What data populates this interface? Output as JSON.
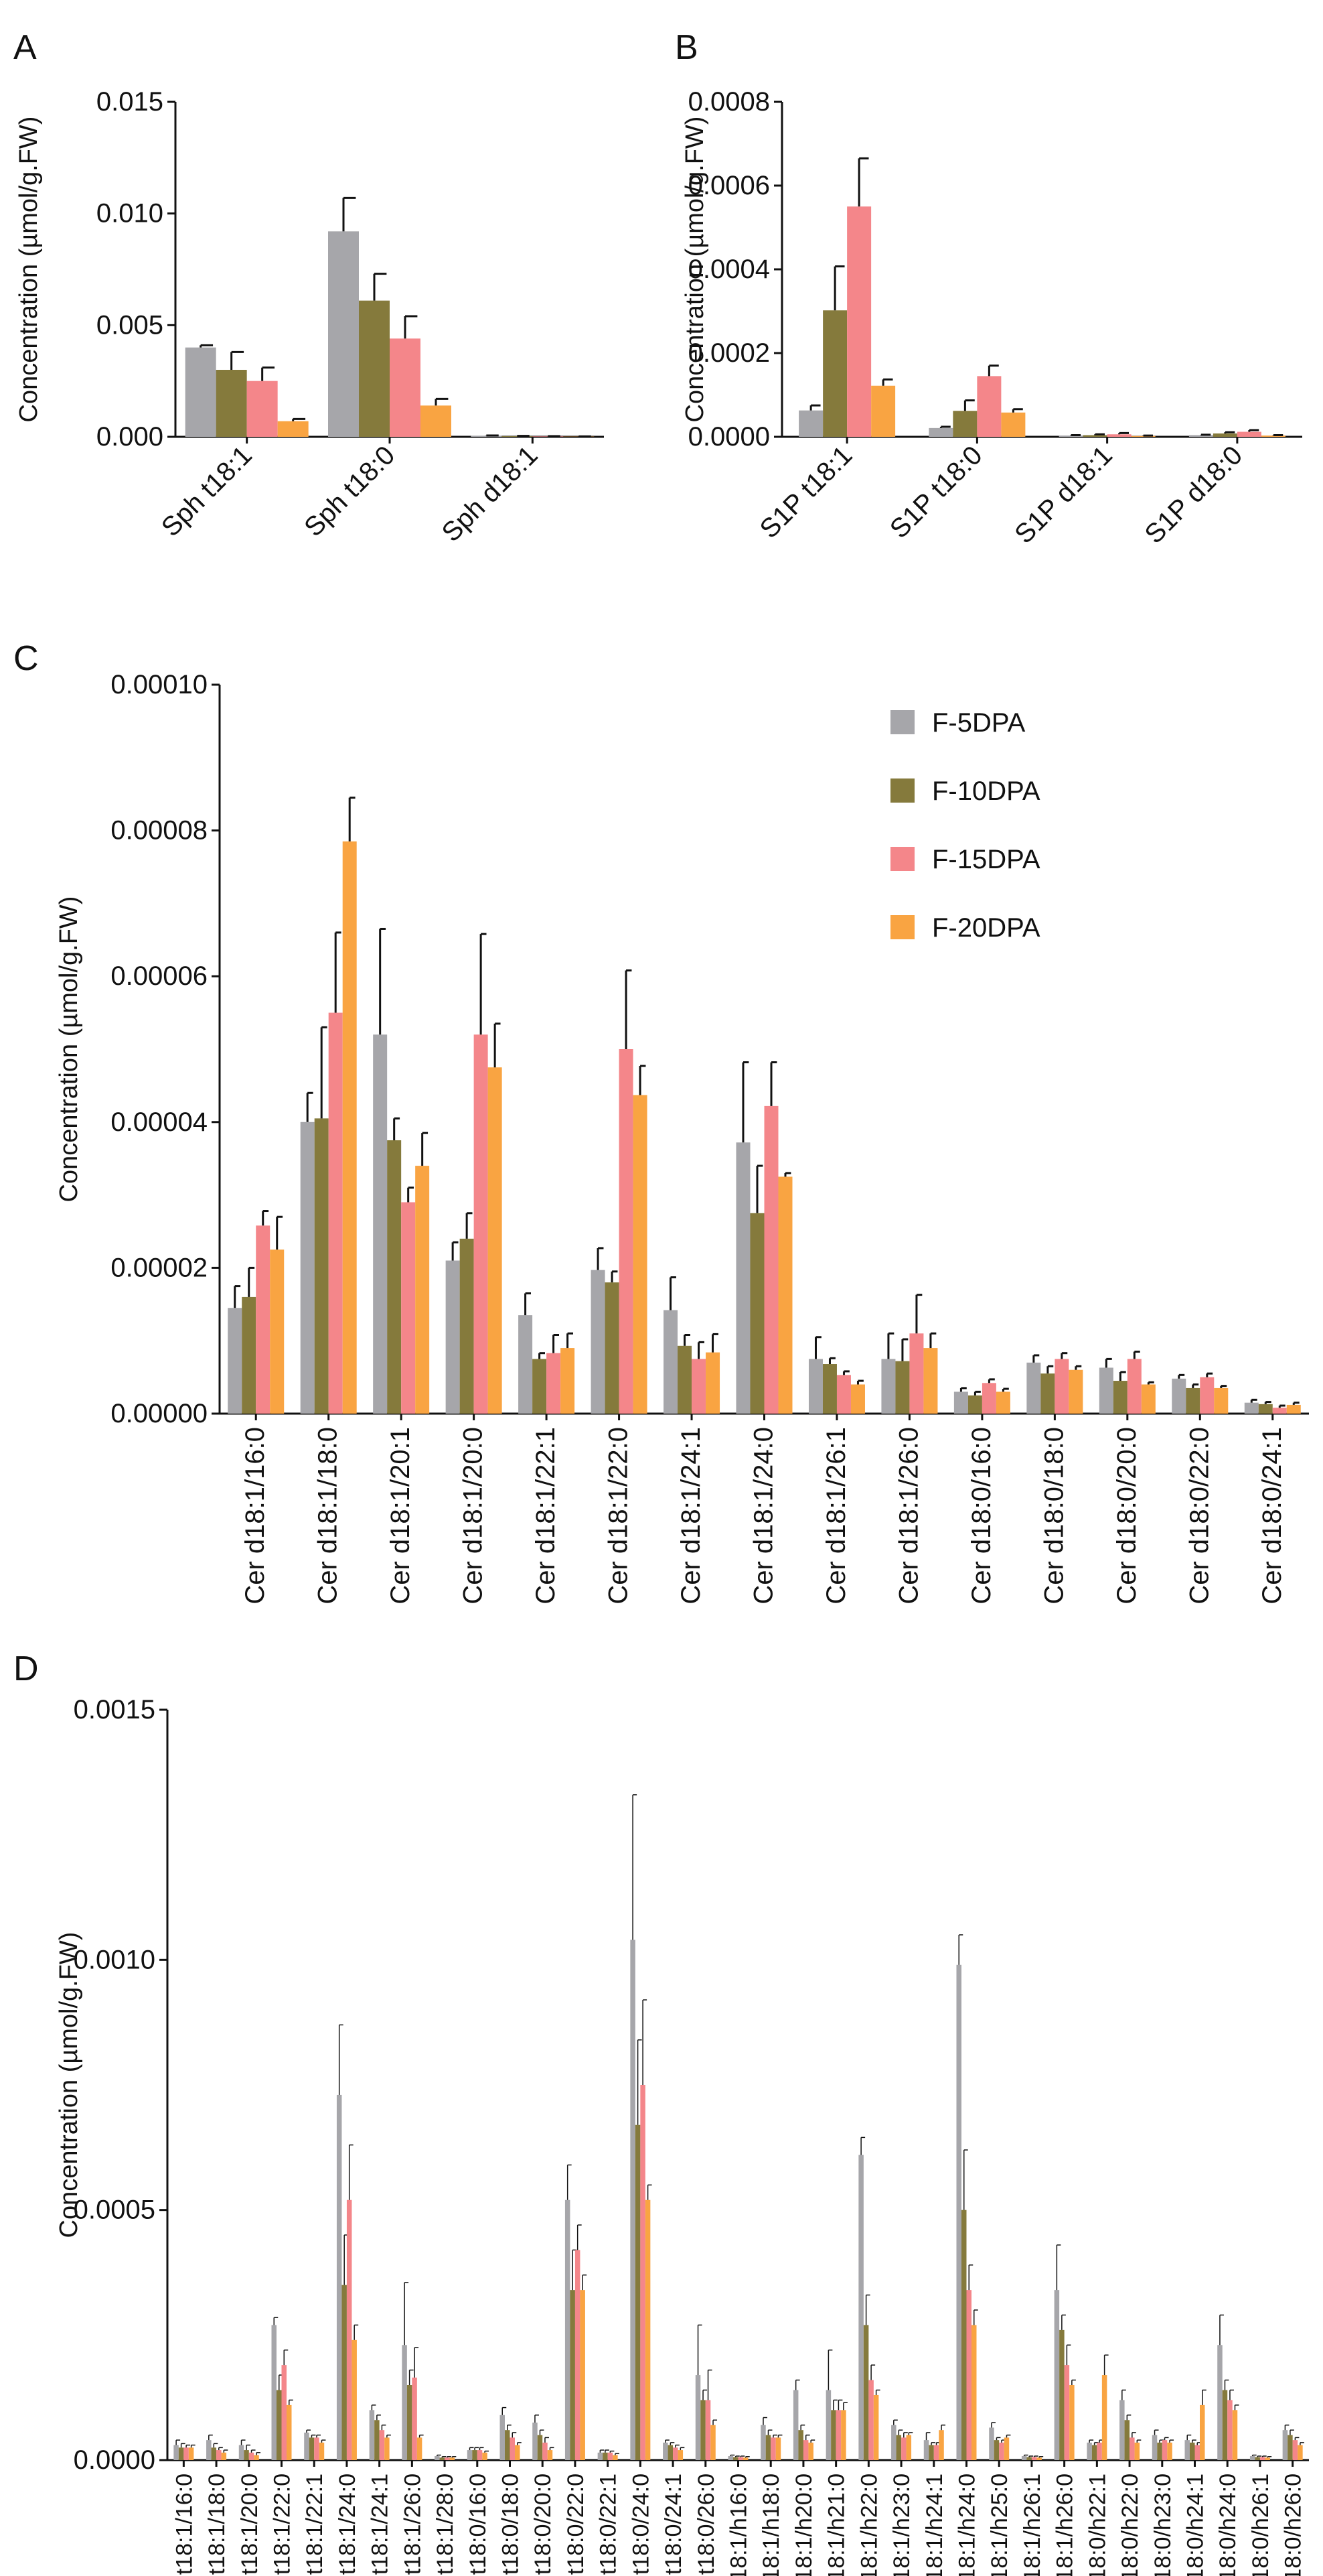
{
  "colors": {
    "F-5DPA": "#a6a6aa",
    "F-10DPA": "#857a3c",
    "F-15DPA": "#f4868a",
    "F-20DPA": "#f9a442",
    "axis": "#111111"
  },
  "chart_data": [
    {
      "panel": "A",
      "type": "bar",
      "ylabel": "Concentration (µmol/g.FW)",
      "ylim": [
        0,
        0.015
      ],
      "yticks": [
        "0.000",
        "0.005",
        "0.010",
        "0.015"
      ],
      "categories": [
        "Sph t18:1",
        "Sph t18:0",
        "Sph d18:1"
      ],
      "series": [
        {
          "values": [
            0.004,
            0.0092,
            5e-05
          ],
          "errors": [
            0.0001,
            0.0015,
            1e-05
          ]
        },
        {
          "values": [
            0.003,
            0.0061,
            3e-05
          ],
          "errors": [
            0.0008,
            0.0012,
            1e-05
          ]
        },
        {
          "values": [
            0.0025,
            0.0044,
            2e-05
          ],
          "errors": [
            0.0006,
            0.001,
            1e-05
          ]
        },
        {
          "values": [
            0.0007,
            0.0014,
            1e-05
          ],
          "errors": [
            0.0001,
            0.0003,
            1e-05
          ]
        }
      ]
    },
    {
      "panel": "B",
      "type": "bar",
      "ylabel": "Concentration (µmol/g.FW)",
      "ylim": [
        0,
        0.0008
      ],
      "yticks": [
        "0.0000",
        "0.0002",
        "0.0004",
        "0.0006",
        "0.0008"
      ],
      "categories": [
        "S1P t18:1",
        "S1P t18:0",
        "S1P d18:1",
        "S1P d18:0"
      ],
      "series": [
        {
          "values": [
            6.3e-05,
            2.1e-05,
            3e-06,
            4e-06
          ],
          "errors": [
            1.2e-05,
            3e-06,
            1e-06,
            1e-06
          ]
        },
        {
          "values": [
            0.000302,
            6.2e-05,
            4e-06,
            8e-06
          ],
          "errors": [
            0.000105,
            2.5e-05,
            2e-06,
            3e-06
          ]
        },
        {
          "values": [
            0.00055,
            0.000145,
            6e-06,
            1.2e-05
          ],
          "errors": [
            0.000115,
            2.5e-05,
            3e-06,
            4e-06
          ]
        },
        {
          "values": [
            0.000122,
            5.8e-05,
            2e-06,
            3e-06
          ],
          "errors": [
            1.5e-05,
            8e-06,
            1e-06,
            1e-06
          ]
        }
      ]
    },
    {
      "panel": "C",
      "type": "bar",
      "ylabel": "Concentration (µmol/g.FW)",
      "ylim": [
        0,
        0.0001
      ],
      "yticks": [
        "0.00000",
        "0.00002",
        "0.00004",
        "0.00006",
        "0.00008",
        "0.00010"
      ],
      "legend": [
        "F-5DPA",
        "F-10DPA",
        "F-15DPA",
        "F-20DPA"
      ],
      "categories": [
        "Cer d18:1/16:0",
        "Cer d18:1/18:0",
        "Cer d18:1/20:1",
        "Cer d18:1/20:0",
        "Cer d18:1/22:1",
        "Cer d18:1/22:0",
        "Cer d18:1/24:1",
        "Cer d18:1/24:0",
        "Cer d18:1/26:1",
        "Cer d18:1/26:0",
        "Cer d18:0/16:0",
        "Cer d18:0/18:0",
        "Cer d18:0/20:0",
        "Cer d18:0/22:0",
        "Cer d18:0/24:1"
      ],
      "series": [
        {
          "name": "F-5DPA",
          "values": [
            1.45e-05,
            4e-05,
            5.2e-05,
            2.1e-05,
            1.35e-05,
            1.97e-05,
            1.42e-05,
            3.72e-05,
            7.5e-06,
            7.5e-06,
            3e-06,
            7e-06,
            6.3e-06,
            4.8e-06,
            1.5e-06
          ],
          "errors": [
            3e-06,
            4e-06,
            1.45e-05,
            2.5e-06,
            3e-06,
            3e-06,
            4.5e-06,
            1.1e-05,
            3e-06,
            3.5e-06,
            5e-07,
            1e-06,
            1.2e-06,
            5e-07,
            4e-07
          ]
        },
        {
          "name": "F-10DPA",
          "values": [
            1.6e-05,
            4.05e-05,
            3.75e-05,
            2.4e-05,
            7.5e-06,
            1.8e-05,
            9.3e-06,
            2.75e-05,
            6.8e-06,
            7.2e-06,
            2.5e-06,
            5.5e-06,
            4.5e-06,
            3.5e-06,
            1.3e-06
          ],
          "errors": [
            4e-06,
            1.25e-05,
            3e-06,
            3.5e-06,
            8e-07,
            1.5e-06,
            1.5e-06,
            6.5e-06,
            8e-07,
            3e-06,
            5e-07,
            1e-06,
            1.2e-06,
            5e-07,
            3e-07
          ]
        },
        {
          "name": "F-15DPA",
          "values": [
            2.58e-05,
            5.5e-05,
            2.9e-05,
            5.2e-05,
            8.3e-06,
            5e-05,
            7.5e-06,
            4.22e-05,
            5.3e-06,
            1.1e-05,
            4.2e-06,
            7.5e-06,
            7.5e-06,
            5e-06,
            8e-07
          ],
          "errors": [
            2e-06,
            1.1e-05,
            2e-06,
            1.38e-05,
            2.5e-06,
            1.08e-05,
            2.3e-06,
            6e-06,
            5e-07,
            5.3e-06,
            5e-07,
            8e-07,
            1e-06,
            5e-07,
            3e-07
          ]
        },
        {
          "name": "F-20DPA",
          "values": [
            2.25e-05,
            7.85e-05,
            3.4e-05,
            4.75e-05,
            9e-06,
            4.37e-05,
            8.4e-06,
            3.25e-05,
            4e-06,
            9e-06,
            3e-06,
            6e-06,
            4e-06,
            3.5e-06,
            1.2e-06
          ],
          "errors": [
            4.5e-06,
            6e-06,
            4.5e-06,
            6e-06,
            2e-06,
            4e-06,
            2.5e-06,
            5e-07,
            5e-07,
            2e-06,
            4e-07,
            5e-07,
            3e-07,
            3e-07,
            3e-07
          ]
        }
      ]
    },
    {
      "panel": "D",
      "type": "bar",
      "ylabel": "Concentration (µmol/g.FW)",
      "ylim": [
        0,
        0.0015
      ],
      "yticks": [
        "0.0000",
        "0.0005",
        "0.0010",
        "0.0015"
      ],
      "categories": [
        "t18:1/16:0",
        "t18:1/18:0",
        "t18:1/20:0",
        "t18:1/22:0",
        "t18:1/22:1",
        "t18:1/24:0",
        "t18:1/24:1",
        "t18:1/26:0",
        "t18:1/28:0",
        "t18:0/16:0",
        "t18:0/18:0",
        "t18:0/20:0",
        "t18:0/22:0",
        "t18:0/22:1",
        "t18:0/24:0",
        "t18:0/24:1",
        "t18:0/26:0",
        "t18:1/h16:0",
        "t18:1/h18:0",
        "t18:1/h20:0",
        "t18:1/h21:0",
        "t18:1/h22:0",
        "t18:1/h23:0",
        "t18:1/h24:1",
        "t18:1/h24:0",
        "t18:1/h25:0",
        "t18:1/h26:1",
        "t18:1/h26:0",
        "t18:0/h22:1",
        "t18:0/h22:0",
        "t18:0/h23:0",
        "t18:0/h24:1",
        "t18:0/h24:0",
        "t18:0/h26:1",
        "t18:0/h26:0"
      ],
      "series": [
        {
          "values": [
            3e-05,
            4e-05,
            3e-05,
            0.00027,
            5.5e-05,
            0.00073,
            0.0001,
            0.00023,
            8e-06,
            2e-05,
            9e-05,
            7.5e-05,
            0.00052,
            1.5e-05,
            0.00104,
            3.5e-05,
            0.00017,
            8e-06,
            7e-05,
            0.00014,
            0.00014,
            0.00061,
            7e-05,
            4e-05,
            0.00099,
            6.5e-05,
            8e-06,
            0.00034,
            3.5e-05,
            0.00012,
            5e-05,
            4e-05,
            0.00023,
            8e-06,
            6e-05
          ],
          "errors": [
            1e-05,
            1e-05,
            1e-05,
            1.5e-05,
            5e-06,
            0.00014,
            1e-05,
            0.000125,
            2e-06,
            5e-06,
            1.5e-05,
            1.5e-05,
            7e-05,
            5e-06,
            0.00029,
            5e-06,
            0.0001,
            2e-06,
            1.5e-05,
            2e-05,
            8e-05,
            3.5e-05,
            1e-05,
            1.5e-05,
            6e-05,
            1e-05,
            2e-06,
            9e-05,
            5e-06,
            2e-05,
            1e-05,
            1e-05,
            6e-05,
            2e-06,
            1e-05
          ]
        },
        {
          "values": [
            2.5e-05,
            2.5e-05,
            2e-05,
            0.00014,
            4.5e-05,
            0.00035,
            8e-05,
            0.00015,
            5e-06,
            2e-05,
            6e-05,
            5e-05,
            0.00034,
            1.5e-05,
            0.00067,
            3e-05,
            0.00012,
            6e-06,
            5e-05,
            6e-05,
            0.0001,
            0.00027,
            5e-05,
            3e-05,
            0.0005,
            4e-05,
            6e-06,
            0.00026,
            3e-05,
            8e-05,
            3.5e-05,
            3.5e-05,
            0.00014,
            6e-06,
            5e-05
          ],
          "errors": [
            8e-06,
            8e-06,
            1e-05,
            3e-05,
            5e-06,
            0.0001,
            1e-05,
            3e-05,
            2e-06,
            5e-06,
            1e-05,
            1e-05,
            8e-05,
            5e-06,
            0.00017,
            5e-06,
            2e-05,
            2e-06,
            1e-05,
            1e-05,
            2e-05,
            6e-05,
            1e-05,
            5e-06,
            0.00012,
            5e-06,
            2e-06,
            3e-05,
            5e-06,
            1e-05,
            5e-06,
            5e-06,
            2e-05,
            2e-06,
            1e-05
          ]
        },
        {
          "values": [
            2.5e-05,
            2e-05,
            1.5e-05,
            0.00019,
            4.5e-05,
            0.00052,
            6e-05,
            0.000165,
            5e-06,
            2e-05,
            4.5e-05,
            3.5e-05,
            0.00042,
            1.5e-05,
            0.00075,
            2.5e-05,
            0.00012,
            6e-06,
            4.5e-05,
            4e-05,
            0.0001,
            0.00016,
            4.5e-05,
            3e-05,
            0.00034,
            3.5e-05,
            6e-06,
            0.00019,
            3.5e-05,
            4.5e-05,
            4e-05,
            3e-05,
            0.00012,
            6e-06,
            4e-05
          ],
          "errors": [
            5e-06,
            5e-06,
            5e-06,
            3e-05,
            5e-06,
            0.00011,
            1e-05,
            6e-05,
            2e-06,
            5e-06,
            1e-05,
            1e-05,
            5e-05,
            3e-06,
            0.00017,
            5e-06,
            6e-05,
            2e-06,
            5e-06,
            1e-05,
            2e-05,
            3e-05,
            1e-05,
            5e-06,
            5e-05,
            5e-06,
            2e-06,
            4e-05,
            5e-06,
            1e-05,
            5e-06,
            5e-06,
            2e-05,
            2e-06,
            5e-06
          ]
        },
        {
          "values": [
            2.5e-05,
            1.5e-05,
            1e-05,
            0.00011,
            3.5e-05,
            0.00024,
            4.5e-05,
            4.5e-05,
            5e-06,
            1.5e-05,
            3e-05,
            2e-05,
            0.00034,
            1e-05,
            0.00052,
            2e-05,
            7e-05,
            5e-06,
            4.5e-05,
            3.5e-05,
            0.0001,
            0.00013,
            5e-05,
            6e-05,
            0.00027,
            4.5e-05,
            5e-06,
            0.00015,
            0.00017,
            3.5e-05,
            3.5e-05,
            0.00011,
            0.0001,
            5e-06,
            3e-05
          ],
          "errors": [
            5e-06,
            5e-06,
            5e-06,
            1e-05,
            5e-06,
            3e-05,
            5e-06,
            5e-06,
            2e-06,
            3e-06,
            5e-06,
            5e-06,
            3e-05,
            3e-06,
            3e-05,
            5e-06,
            1e-05,
            2e-06,
            5e-06,
            5e-06,
            1.5e-05,
            1e-05,
            5e-06,
            1e-05,
            3e-05,
            5e-06,
            2e-06,
            1e-05,
            4e-05,
            5e-06,
            5e-06,
            3e-05,
            1e-05,
            2e-06,
            5e-06
          ]
        }
      ]
    }
  ]
}
